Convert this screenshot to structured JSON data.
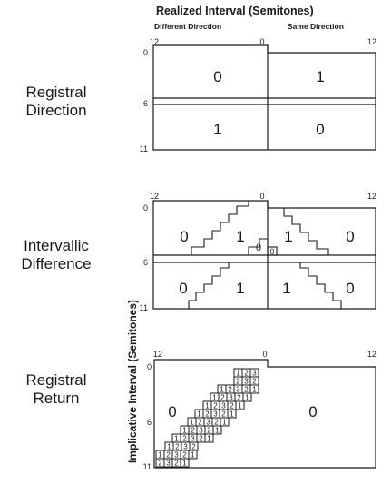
{
  "header": {
    "title": "Realized Interval (Semitones)",
    "left_label": "Different Direction",
    "right_label": "Same Direction"
  },
  "y_axis_title": "Implicative Interval (Semitones)",
  "ticks": {
    "x_left": "12",
    "x_mid": "0",
    "x_right": "12",
    "y_top": "0",
    "y_mid": "6",
    "y_bottom": "11"
  },
  "panels": [
    {
      "label_line1": "Registral",
      "label_line2": "Direction",
      "values": {
        "top_left": "0",
        "top_right": "1",
        "bottom_left": "1",
        "bottom_right": "0"
      }
    },
    {
      "label_line1": "Intervallic",
      "label_line2": "Difference",
      "values": {
        "top_left": "0",
        "top_mid": "1",
        "top_right_a": "1",
        "top_right_b": "0",
        "center_a": "0",
        "center_b": "0",
        "bottom_left": "0",
        "bottom_mid": "1",
        "bottom_right_a": "1",
        "bottom_right_b": "0"
      }
    },
    {
      "label_line1": "Registral",
      "label_line2": "Return",
      "values": {
        "left": "0",
        "right": "0"
      },
      "band_rows": [
        [
          "1",
          "2",
          "3"
        ],
        [
          "2",
          "3",
          "2"
        ],
        [
          "1",
          "2",
          "3",
          "2",
          "1"
        ],
        [
          "1",
          "2",
          "3",
          "2",
          "1"
        ],
        [
          "1",
          "2",
          "3",
          "2",
          "1"
        ],
        [
          "1",
          "2",
          "3",
          "2",
          "1"
        ],
        [
          "1",
          "2",
          "3",
          "2",
          "1"
        ],
        [
          "1",
          "2",
          "3",
          "2",
          "1"
        ],
        [
          "1",
          "2",
          "3",
          "2",
          "1"
        ],
        [
          "1",
          "2",
          "3",
          "2"
        ],
        [
          "1",
          "2",
          "3",
          "2",
          "1"
        ],
        [
          "2",
          "3",
          "2",
          "1"
        ]
      ]
    }
  ]
}
